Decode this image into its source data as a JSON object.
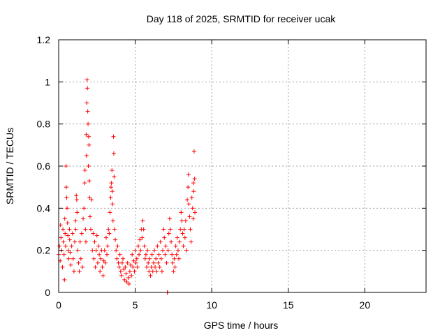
{
  "chart_data": {
    "type": "scatter",
    "title": "Day 118 of 2025, SRMTID for receiver ucak",
    "xlabel": "GPS time / hours",
    "ylabel": "SRMTID / TECUs",
    "xlim": [
      0,
      24
    ],
    "ylim": [
      0,
      1.2
    ],
    "x_ticks": [
      0,
      5,
      10,
      15,
      20
    ],
    "x_tick_labels": [
      "0",
      "5",
      "10",
      "15",
      "20"
    ],
    "y_ticks": [
      0,
      0.2,
      0.4,
      0.6,
      0.8,
      1.0,
      1.2
    ],
    "y_tick_labels": [
      "0",
      "0.2",
      "0.4",
      "0.6",
      "0.8",
      "1",
      "1.2"
    ],
    "grid": true,
    "marker": "+",
    "series": [
      {
        "name": "SRMTID",
        "color": "#ff0000",
        "points": [
          [
            0.0,
            0.18
          ],
          [
            0.05,
            0.22
          ],
          [
            0.1,
            0.15
          ],
          [
            0.12,
            0.32
          ],
          [
            0.15,
            0.26
          ],
          [
            0.2,
            0.2
          ],
          [
            0.25,
            0.12
          ],
          [
            0.28,
            0.3
          ],
          [
            0.3,
            0.24
          ],
          [
            0.35,
            0.18
          ],
          [
            0.38,
            0.06
          ],
          [
            0.4,
            0.35
          ],
          [
            0.42,
            0.28
          ],
          [
            0.45,
            0.22
          ],
          [
            0.48,
            0.6
          ],
          [
            0.5,
            0.5
          ],
          [
            0.52,
            0.45
          ],
          [
            0.55,
            0.4
          ],
          [
            0.58,
            0.33
          ],
          [
            0.6,
            0.27
          ],
          [
            0.62,
            0.2
          ],
          [
            0.65,
            0.16
          ],
          [
            0.7,
            0.3
          ],
          [
            0.72,
            0.25
          ],
          [
            0.75,
            0.19
          ],
          [
            0.8,
            0.13
          ],
          [
            0.85,
            0.22
          ],
          [
            0.9,
            0.28
          ],
          [
            0.95,
            0.16
          ],
          [
            1.0,
            0.1
          ],
          [
            1.05,
            0.24
          ],
          [
            1.1,
            0.34
          ],
          [
            1.12,
            0.3
          ],
          [
            1.15,
            0.46
          ],
          [
            1.18,
            0.44
          ],
          [
            1.2,
            0.38
          ],
          [
            1.25,
            0.2
          ],
          [
            1.3,
            0.14
          ],
          [
            1.35,
            0.1
          ],
          [
            1.4,
            0.24
          ],
          [
            1.45,
            0.16
          ],
          [
            1.5,
            0.28
          ],
          [
            1.55,
            0.12
          ],
          [
            1.6,
            0.35
          ],
          [
            1.65,
            0.4
          ],
          [
            1.7,
            0.52
          ],
          [
            1.72,
            0.58
          ],
          [
            1.75,
            0.3
          ],
          [
            1.78,
            0.24
          ],
          [
            1.8,
            0.75
          ],
          [
            1.82,
            0.65
          ],
          [
            1.84,
            0.9
          ],
          [
            1.86,
            1.01
          ],
          [
            1.88,
            0.97
          ],
          [
            1.9,
            0.86
          ],
          [
            1.92,
            0.8
          ],
          [
            1.94,
            0.6
          ],
          [
            1.96,
            0.74
          ],
          [
            1.98,
            0.7
          ],
          [
            2.0,
            0.53
          ],
          [
            2.02,
            0.45
          ],
          [
            2.05,
            0.36
          ],
          [
            2.1,
            0.3
          ],
          [
            2.15,
            0.44
          ],
          [
            2.2,
            0.2
          ],
          [
            2.25,
            0.28
          ],
          [
            2.3,
            0.16
          ],
          [
            2.35,
            0.24
          ],
          [
            2.4,
            0.12
          ],
          [
            2.45,
            0.2
          ],
          [
            2.5,
            0.27
          ],
          [
            2.55,
            0.14
          ],
          [
            2.6,
            0.22
          ],
          [
            2.65,
            0.18
          ],
          [
            2.7,
            0.1
          ],
          [
            2.75,
            0.16
          ],
          [
            2.8,
            0.2
          ],
          [
            2.85,
            0.12
          ],
          [
            2.9,
            0.08
          ],
          [
            2.95,
            0.15
          ],
          [
            3.0,
            0.2
          ],
          [
            3.05,
            0.14
          ],
          [
            3.1,
            0.26
          ],
          [
            3.15,
            0.18
          ],
          [
            3.2,
            0.22
          ],
          [
            3.25,
            0.3
          ],
          [
            3.3,
            0.28
          ],
          [
            3.35,
            0.38
          ],
          [
            3.4,
            0.45
          ],
          [
            3.42,
            0.5
          ],
          [
            3.45,
            0.52
          ],
          [
            3.48,
            0.58
          ],
          [
            3.5,
            0.48
          ],
          [
            3.52,
            0.42
          ],
          [
            3.55,
            0.34
          ],
          [
            3.58,
            0.74
          ],
          [
            3.6,
            0.66
          ],
          [
            3.62,
            0.55
          ],
          [
            3.65,
            0.3
          ],
          [
            3.7,
            0.25
          ],
          [
            3.75,
            0.2
          ],
          [
            3.8,
            0.16
          ],
          [
            3.85,
            0.22
          ],
          [
            3.9,
            0.14
          ],
          [
            3.95,
            0.12
          ],
          [
            4.0,
            0.18
          ],
          [
            4.05,
            0.1
          ],
          [
            4.1,
            0.08
          ],
          [
            4.15,
            0.14
          ],
          [
            4.2,
            0.16
          ],
          [
            4.25,
            0.11
          ],
          [
            4.3,
            0.06
          ],
          [
            4.35,
            0.12
          ],
          [
            4.4,
            0.09
          ],
          [
            4.45,
            0.05
          ],
          [
            4.5,
            0.14
          ],
          [
            4.55,
            0.07
          ],
          [
            4.6,
            0.04
          ],
          [
            4.65,
            0.1
          ],
          [
            4.7,
            0.13
          ],
          [
            4.75,
            0.08
          ],
          [
            4.8,
            0.18
          ],
          [
            4.85,
            0.12
          ],
          [
            4.9,
            0.15
          ],
          [
            4.95,
            0.1
          ],
          [
            5.0,
            0.2
          ],
          [
            5.05,
            0.14
          ],
          [
            5.1,
            0.16
          ],
          [
            5.15,
            0.12
          ],
          [
            5.2,
            0.22
          ],
          [
            5.25,
            0.18
          ],
          [
            5.3,
            0.25
          ],
          [
            5.35,
            0.2
          ],
          [
            5.4,
            0.3
          ],
          [
            5.45,
            0.26
          ],
          [
            5.5,
            0.34
          ],
          [
            5.55,
            0.3
          ],
          [
            5.6,
            0.22
          ],
          [
            5.65,
            0.16
          ],
          [
            5.7,
            0.18
          ],
          [
            5.75,
            0.12
          ],
          [
            5.8,
            0.2
          ],
          [
            5.85,
            0.14
          ],
          [
            5.9,
            0.1
          ],
          [
            5.95,
            0.16
          ],
          [
            6.0,
            0.08
          ],
          [
            6.05,
            0.12
          ],
          [
            6.1,
            0.18
          ],
          [
            6.15,
            0.1
          ],
          [
            6.2,
            0.14
          ],
          [
            6.25,
            0.2
          ],
          [
            6.3,
            0.12
          ],
          [
            6.35,
            0.16
          ],
          [
            6.4,
            0.1
          ],
          [
            6.45,
            0.22
          ],
          [
            6.5,
            0.14
          ],
          [
            6.55,
            0.18
          ],
          [
            6.6,
            0.12
          ],
          [
            6.65,
            0.24
          ],
          [
            6.7,
            0.16
          ],
          [
            6.75,
            0.1
          ],
          [
            6.8,
            0.2
          ],
          [
            6.85,
            0.3
          ],
          [
            6.9,
            0.26
          ],
          [
            6.95,
            0.18
          ],
          [
            7.0,
            0.22
          ],
          [
            7.05,
            0.14
          ],
          [
            7.1,
            0.0
          ],
          [
            7.12,
            0.0
          ],
          [
            7.15,
            0.2
          ],
          [
            7.2,
            0.28
          ],
          [
            7.25,
            0.35
          ],
          [
            7.3,
            0.3
          ],
          [
            7.35,
            0.24
          ],
          [
            7.4,
            0.18
          ],
          [
            7.45,
            0.14
          ],
          [
            7.5,
            0.1
          ],
          [
            7.55,
            0.16
          ],
          [
            7.6,
            0.12
          ],
          [
            7.65,
            0.22
          ],
          [
            7.7,
            0.18
          ],
          [
            7.75,
            0.26
          ],
          [
            7.8,
            0.2
          ],
          [
            7.85,
            0.16
          ],
          [
            7.9,
            0.24
          ],
          [
            7.95,
            0.3
          ],
          [
            8.0,
            0.38
          ],
          [
            8.05,
            0.34
          ],
          [
            8.1,
            0.28
          ],
          [
            8.15,
            0.22
          ],
          [
            8.2,
            0.3
          ],
          [
            8.25,
            0.26
          ],
          [
            8.3,
            0.34
          ],
          [
            8.35,
            0.2
          ],
          [
            8.4,
            0.44
          ],
          [
            8.45,
            0.5
          ],
          [
            8.48,
            0.56
          ],
          [
            8.5,
            0.42
          ],
          [
            8.55,
            0.36
          ],
          [
            8.6,
            0.3
          ],
          [
            8.65,
            0.24
          ],
          [
            8.7,
            0.45
          ],
          [
            8.75,
            0.4
          ],
          [
            8.78,
            0.35
          ],
          [
            8.8,
            0.52
          ],
          [
            8.82,
            0.48
          ],
          [
            8.85,
            0.67
          ],
          [
            8.88,
            0.54
          ],
          [
            8.9,
            0.38
          ]
        ]
      }
    ]
  }
}
